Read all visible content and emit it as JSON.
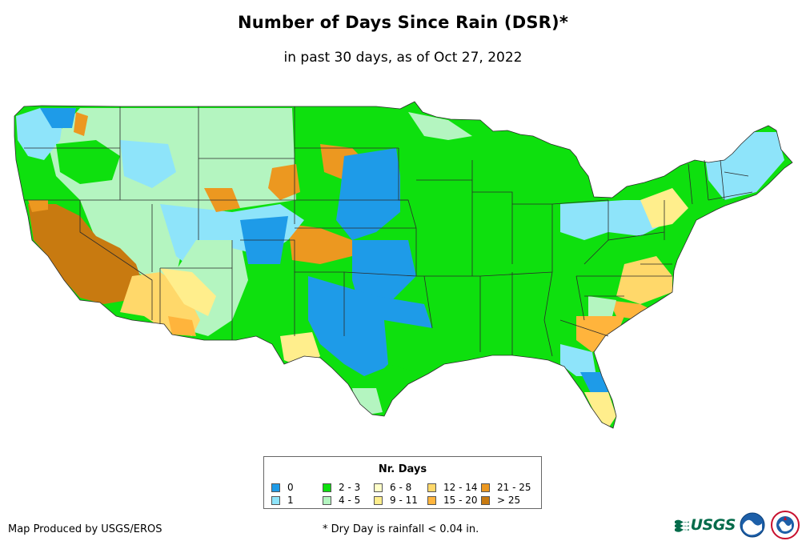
{
  "header": {
    "title": "Number of Days Since Rain (DSR)*",
    "subtitle": "in past 30 days, as of Oct 27, 2022"
  },
  "legend": {
    "title": "Nr. Days",
    "items": [
      {
        "label": "0",
        "color": "#1e9be8"
      },
      {
        "label": "1",
        "color": "#8ee4fa"
      },
      {
        "label": "2 - 3",
        "color": "#0ee00e"
      },
      {
        "label": "4 - 5",
        "color": "#b4f5c0"
      },
      {
        "label": "6 - 8",
        "color": "#ffffc8"
      },
      {
        "label": "9 - 11",
        "color": "#ffee8c"
      },
      {
        "label": "12 - 14",
        "color": "#ffd86a"
      },
      {
        "label": "15 - 20",
        "color": "#ffb43c"
      },
      {
        "label": "21 - 25",
        "color": "#ec9820"
      },
      {
        "label": "> 25",
        "color": "#c87a10"
      }
    ]
  },
  "footer": {
    "credit": "Map Produced by USGS/EROS",
    "note": "* Dry Day is rainfall < 0.04 in.",
    "logo_text": "USGS"
  }
}
